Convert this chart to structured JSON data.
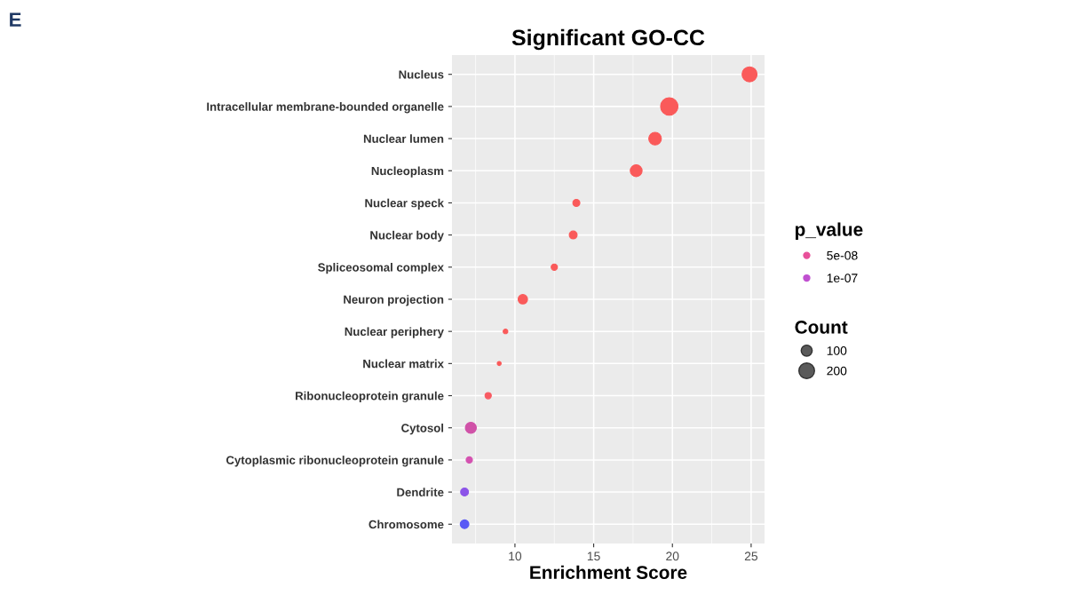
{
  "chart_data": {
    "type": "scatter",
    "orientation": "horizontal",
    "title": "Significant GO-CC",
    "xlabel": "Enrichment Score",
    "annotations": [
      "E"
    ],
    "categories": [
      "Nucleus",
      "Intracellular membrane-bounded organelle",
      "Nuclear lumen",
      "Nucleoplasm",
      "Nuclear speck",
      "Nuclear body",
      "Spliceosomal complex",
      "Neuron projection",
      "Nuclear periphery",
      "Nuclear matrix",
      "Ribonucleoprotein granule",
      "Cytosol",
      "Cytoplasmic ribonucleoprotein granule",
      "Dendrite",
      "Chromosome"
    ],
    "series": [
      {
        "values": [
          24.9,
          19.8,
          18.9,
          17.7,
          13.9,
          13.7,
          12.5,
          10.5,
          9.4,
          9.0,
          8.3,
          7.2,
          7.1,
          6.8,
          6.8
        ],
        "sizes": [
          184,
          247,
          131,
          115,
          41,
          51,
          33,
          73,
          18,
          13,
          33,
          100,
          33,
          51,
          62
        ],
        "colors": [
          "#fa5a5a",
          "#fa5a5a",
          "#fa5a5a",
          "#fa5a5a",
          "#fa5a5a",
          "#fa5a5a",
          "#fa5a5a",
          "#fa5a5a",
          "#fa5a5a",
          "#fa5a5a",
          "#f85a62",
          "#d052a8",
          "#d452b0",
          "#8c54e8",
          "#5a5af5"
        ]
      },
      {
        "name": "5e-08",
        "color": "#e8509a",
        "values": [
          null,
          null,
          null,
          null,
          null,
          null,
          null,
          null,
          null,
          null,
          null,
          null,
          null,
          null,
          null
        ]
      },
      {
        "name": "1e-07",
        "color": "#c050d0",
        "values": [
          null,
          null,
          null,
          null,
          null,
          null,
          null,
          null,
          null,
          null,
          null,
          null,
          null,
          null,
          null
        ]
      }
    ],
    "legend_title": [
      "p_value",
      "Count"
    ],
    "size_legend": [
      100,
      200
    ],
    "xlim": [
      6.0,
      25.85
    ],
    "xticks": [
      10,
      15,
      20,
      25
    ],
    "grid": true,
    "legend": "right",
    "marker": "circle"
  }
}
